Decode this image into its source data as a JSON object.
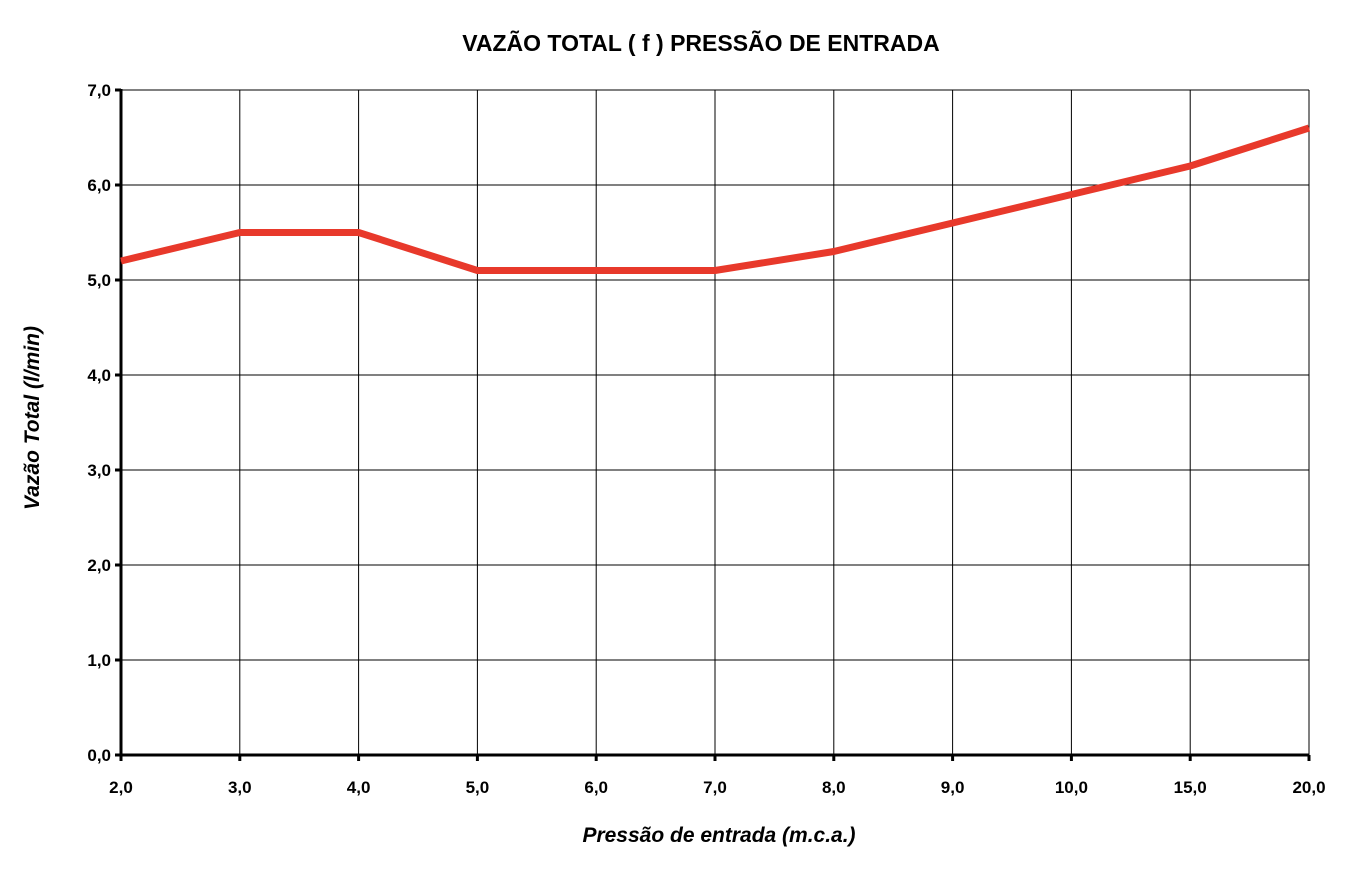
{
  "chart_data": {
    "type": "line",
    "title": "VAZÃO TOTAL ( f ) PRESSÃO DE ENTRADA",
    "xlabel": "Pressão de entrada (m.c.a.)",
    "ylabel": "Vazão Total (l/min)",
    "categories": [
      "2,0",
      "3,0",
      "4,0",
      "5,0",
      "6,0",
      "7,0",
      "8,0",
      "9,0",
      "10,0",
      "15,0",
      "20,0"
    ],
    "x": [
      2,
      3,
      4,
      5,
      6,
      7,
      8,
      9,
      10,
      15,
      20
    ],
    "y_ticks": [
      "0,0",
      "1,0",
      "2,0",
      "3,0",
      "4,0",
      "5,0",
      "6,0",
      "7,0"
    ],
    "ylim": [
      0,
      7
    ],
    "grid": true,
    "series": [
      {
        "values": [
          5.2,
          5.5,
          5.5,
          5.1,
          5.1,
          5.1,
          5.3,
          5.6,
          5.9,
          6.2,
          6.6
        ],
        "color": "#e8392b"
      }
    ]
  }
}
